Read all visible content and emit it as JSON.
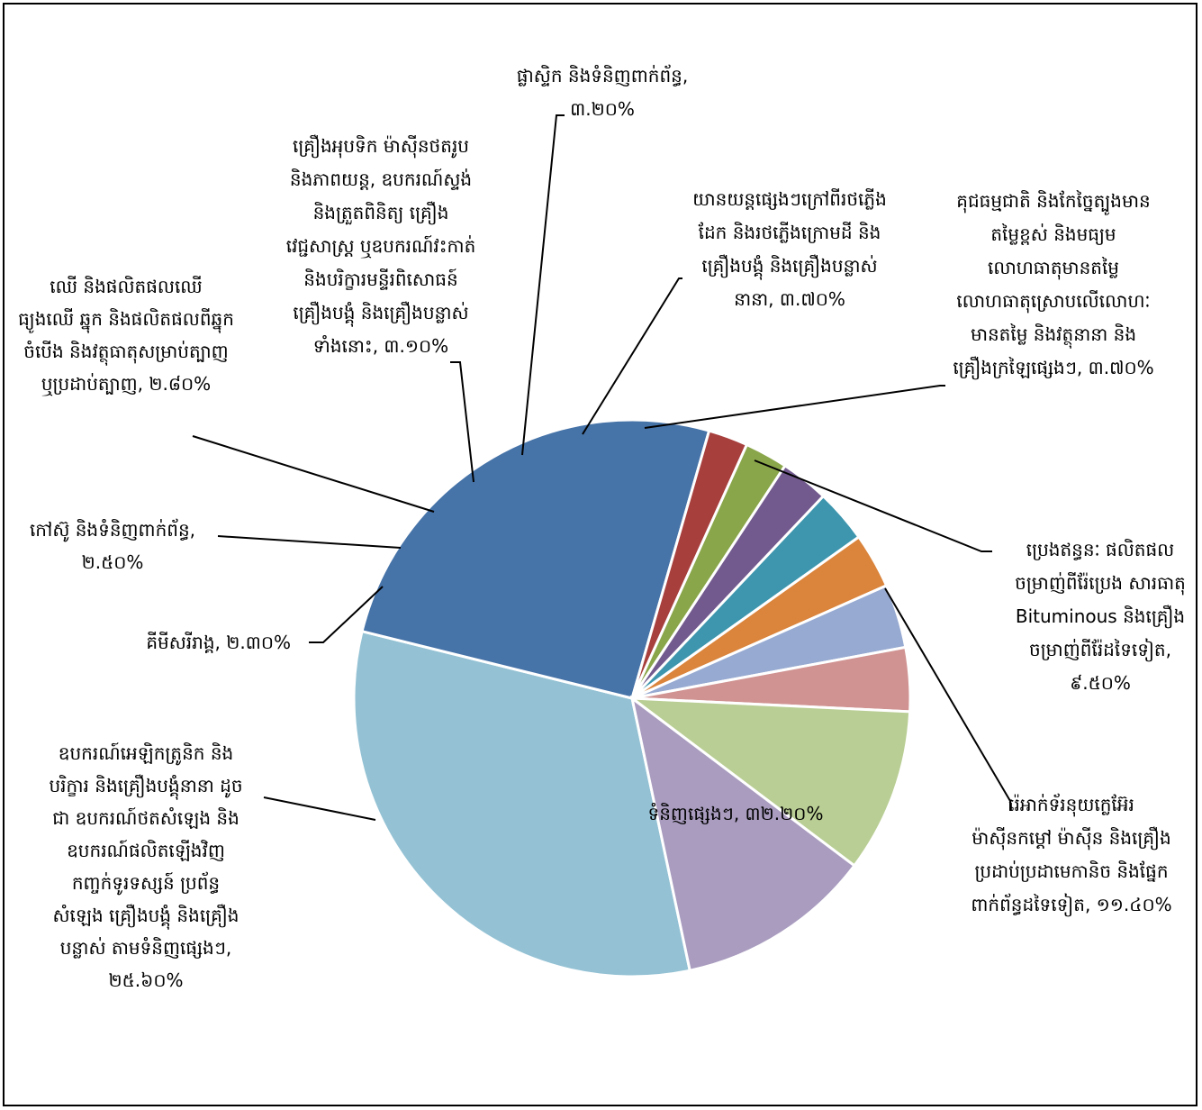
{
  "chart_data": {
    "type": "pie",
    "title": "",
    "colors": {
      "other_goods": "#94C2D4",
      "electrical": "#4673A8",
      "organic_chem": "#A73F3D",
      "rubber": "#8AA64A",
      "wood": "#725A8E",
      "optical": "#3D96AE",
      "plastics": "#DA843C",
      "railway": "#97AAD1",
      "pearls": "#D09392",
      "mineral_fuels": "#B9CE94",
      "nuclear": "#A99CBF"
    },
    "slices": [
      {
        "key": "other_goods",
        "value": 32.2,
        "label_lines": [
          "ទំនិញផ្សេងៗ, ៣២.២០%"
        ]
      },
      {
        "key": "electrical",
        "value": 25.6,
        "label_lines": [
          "ឧបករណ៍អេឡិកត្រូនិក និង",
          "បរិក្ខារ និងគ្រឿងបង្គុំនានា ដូច",
          "ជា ឧបករណ៍ថតសំឡេង និង",
          "ឧបករណ៍ផលិតឡើងវិញ",
          "កញ្ចក់ទូរទស្សន៍ ប្រព័ន្ធ",
          "សំឡេង គ្រឿងបង្គុំ និងគ្រឿង",
          "បន្លាស់ តាមទំនិញផ្សេងៗ,",
          "២៥.៦០%"
        ]
      },
      {
        "key": "organic_chem",
        "value": 2.3,
        "label_lines": [
          "គីមីសរីរាង្គ, ២.៣០%"
        ]
      },
      {
        "key": "rubber",
        "value": 2.5,
        "label_lines": [
          "កៅស៊ូ និងទំនិញពាក់ព័ន្ធ,",
          "២.៥០%"
        ]
      },
      {
        "key": "wood",
        "value": 2.8,
        "label_lines": [
          "ឈើ និងផលិតផលឈើ",
          "ធ្យូងឈើ ឆ្នុក និងផលិតផលពីឆ្នុក",
          "ចំបើង និងវត្ថុធាតុសម្រាប់ត្បាញ",
          "ឬប្រដាប់ត្បាញ, ២.៨០%"
        ]
      },
      {
        "key": "optical",
        "value": 3.1,
        "label_lines": [
          "គ្រឿងអុបទិក ម៉ាស៊ីនថតរូប",
          "និងភាពយន្ត, ឧបករណ៍ស្ទង់",
          "និងត្រួតពិនិត្យ គ្រឿង",
          "វេជ្ជសាស្ត្រ ឬឧបករណ៍វះកាត់",
          "និងបរិក្ខារមន្ទីរពិសោធន៍",
          "គ្រឿងបង្គុំ និងគ្រឿងបន្លាស់",
          "ទាំងនោះ, ៣.១០%"
        ]
      },
      {
        "key": "plastics",
        "value": 3.2,
        "label_lines": [
          "ផ្លាស្ទិក និងទំនិញពាក់ព័ន្ធ,",
          "៣.២០%"
        ]
      },
      {
        "key": "railway",
        "value": 3.7,
        "label_lines": [
          "យានយន្តផ្សេងៗក្រៅពីរថភ្លើង",
          "ដែក និងរថភ្លើងក្រោមដី និង",
          "គ្រឿងបង្គុំ និងគ្រឿងបន្លាស់",
          "នានា, ៣.៧០%"
        ]
      },
      {
        "key": "pearls",
        "value": 3.7,
        "label_lines": [
          "គុជធម្មជាតិ និងកែច្នៃត្បូងមាន",
          "តម្លៃខ្ពស់ និងមធ្យម",
          "លោហធាតុមានតម្លៃ",
          "លោហធាតុស្រោបលើលោហៈ",
          "មានតម្លៃ និងវត្ថុនានា និង",
          "គ្រឿងក្រឡៃផ្សេងៗ, ៣.៧០%"
        ]
      },
      {
        "key": "mineral_fuels",
        "value": 9.5,
        "label_lines": [
          "ប្រេងឥន្ធនៈ ផលិតផល",
          "ចម្រាញ់ពីរ៉ែប្រេង សារធាតុ",
          "Bituminous និងគ្រឿង",
          "ចម្រាញ់ពីរ៉ែដទៃទៀត,",
          "៩.៥០%"
        ]
      },
      {
        "key": "nuclear",
        "value": 11.4,
        "label_lines": [
          "រ៉េអាក់ទ័រនុយក្លេអ៊ែរ",
          "ម៉ាស៊ីនកម្តៅ ម៉ាស៊ីន និងគ្រឿង",
          "ប្រដាប់ប្រដាមេកានិច និងផ្នែក",
          "ពាក់ព័ន្ធដទៃទៀត, ១១.៤០%"
        ]
      }
    ]
  }
}
